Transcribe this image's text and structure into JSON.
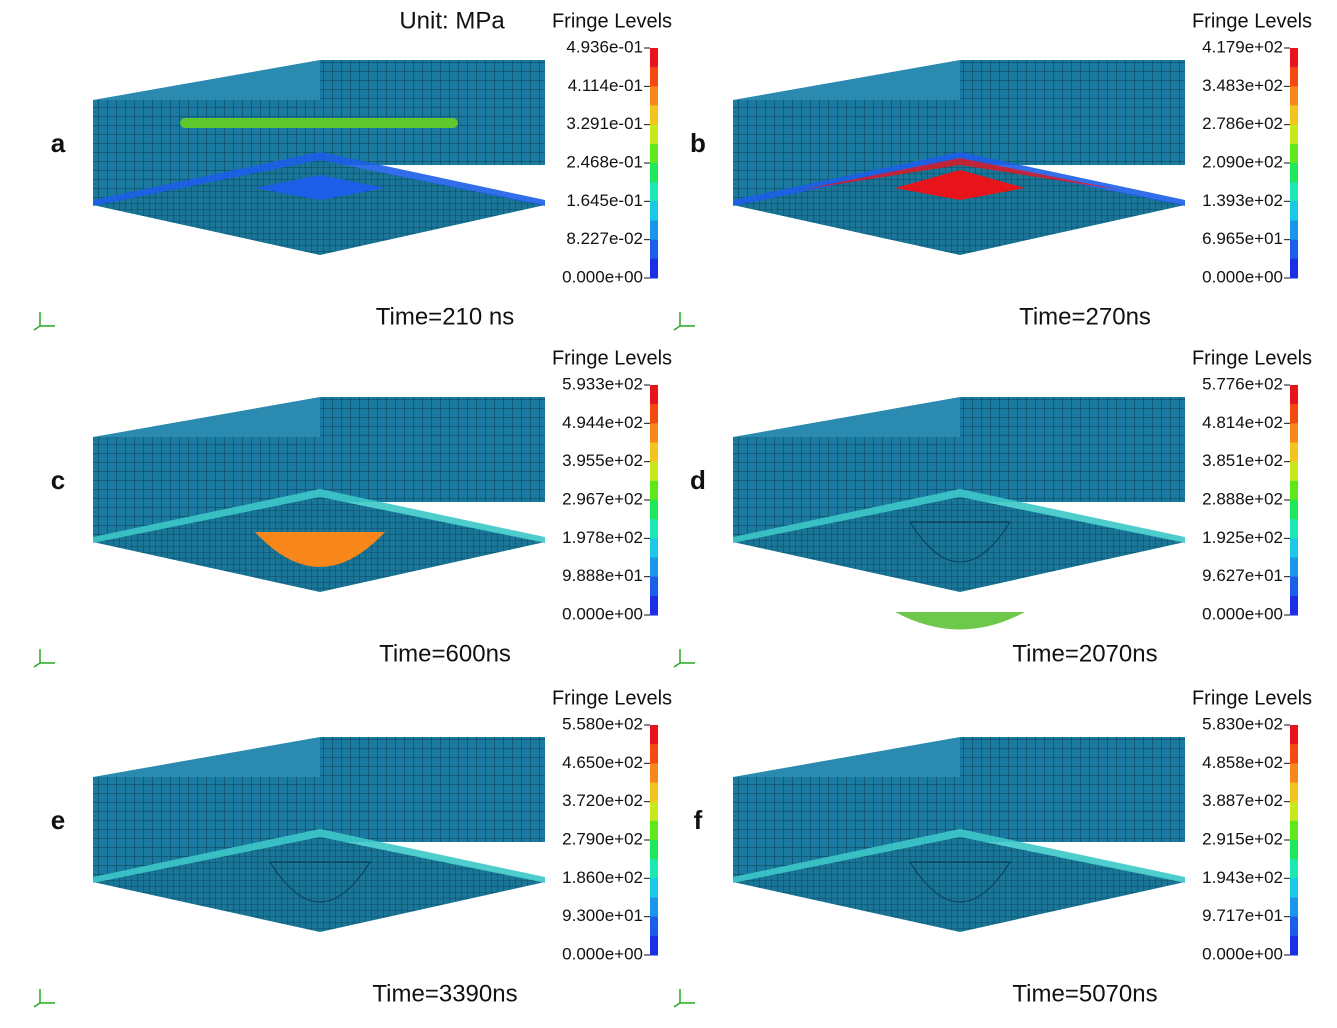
{
  "unit": "Unit: MPa",
  "panels": [
    {
      "label": "a",
      "time": "Time=210 ns",
      "fringe": "Fringe Levels",
      "ticks": [
        "4.936e-01",
        "4.114e-01",
        "3.291e-01",
        "2.468e-01",
        "1.645e-01",
        "8.227e-02",
        "0.000e+00"
      ]
    },
    {
      "label": "b",
      "time": "Time=270ns",
      "fringe": "Fringe Levels",
      "ticks": [
        "4.179e+02",
        "3.483e+02",
        "2.786e+02",
        "2.090e+02",
        "1.393e+02",
        "6.965e+01",
        "0.000e+00"
      ]
    },
    {
      "label": "c",
      "time": "Time=600ns",
      "fringe": "Fringe Levels",
      "ticks": [
        "5.933e+02",
        "4.944e+02",
        "3.955e+02",
        "2.967e+02",
        "1.978e+02",
        "9.888e+01",
        "0.000e+00"
      ]
    },
    {
      "label": "d",
      "time": "Time=2070ns",
      "fringe": "Fringe Levels",
      "ticks": [
        "5.776e+02",
        "4.814e+02",
        "3.851e+02",
        "2.888e+02",
        "1.925e+02",
        "9.627e+01",
        "0.000e+00"
      ]
    },
    {
      "label": "e",
      "time": "Time=3390ns",
      "fringe": "Fringe Levels",
      "ticks": [
        "5.580e+02",
        "4.650e+02",
        "3.720e+02",
        "2.790e+02",
        "1.860e+02",
        "9.300e+01",
        "0.000e+00"
      ]
    },
    {
      "label": "f",
      "time": "Time=5070ns",
      "fringe": "Fringe Levels",
      "ticks": [
        "5.830e+02",
        "4.858e+02",
        "3.887e+02",
        "2.915e+02",
        "1.943e+02",
        "9.717e+01",
        "0.000e+00"
      ]
    }
  ]
}
